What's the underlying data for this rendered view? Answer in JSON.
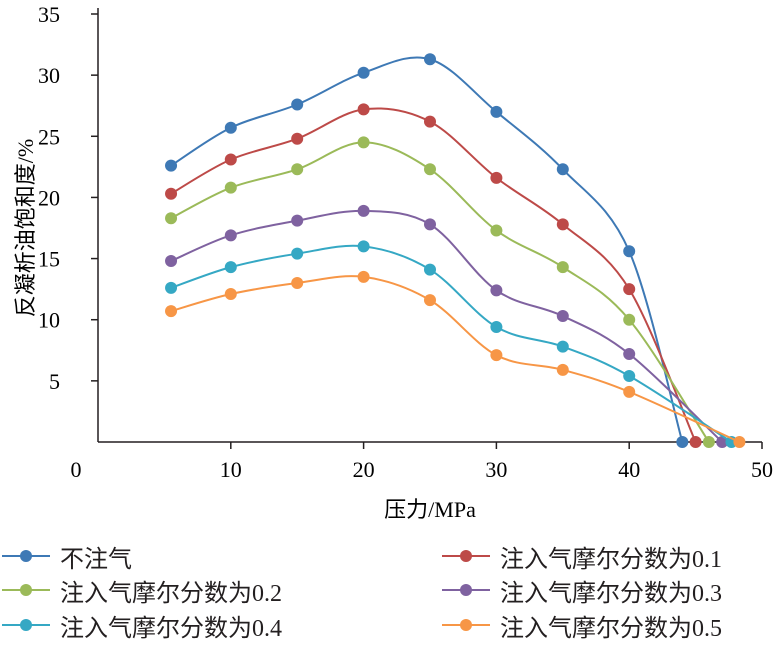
{
  "chart_data": {
    "type": "line",
    "title": "",
    "xlabel": "压力/MPa",
    "ylabel": "反凝析油饱和度/%",
    "xlim": [
      0,
      50
    ],
    "ylim": [
      0,
      35
    ],
    "xticks": [
      0,
      10,
      20,
      30,
      40,
      50
    ],
    "yticks": [
      5,
      10,
      15,
      20,
      25,
      30,
      35
    ],
    "smooth": true,
    "grid": false,
    "legend_position": "bottom",
    "series": [
      {
        "name": "不注气",
        "color": "#3e79b5",
        "x": [
          5.5,
          10,
          15,
          20,
          25,
          30,
          35,
          40,
          44
        ],
        "y": [
          22.6,
          25.7,
          27.6,
          30.2,
          31.3,
          27.0,
          22.3,
          15.6,
          0
        ]
      },
      {
        "name": "注入气摩尔分数为0.1",
        "color": "#bd4a48",
        "x": [
          5.5,
          10,
          15,
          20,
          25,
          30,
          35,
          40,
          45
        ],
        "y": [
          20.3,
          23.1,
          24.8,
          27.2,
          26.2,
          21.6,
          17.8,
          12.5,
          0
        ]
      },
      {
        "name": "注入气摩尔分数为0.2",
        "color": "#9bba59",
        "x": [
          5.5,
          10,
          15,
          20,
          25,
          30,
          35,
          40,
          46
        ],
        "y": [
          18.3,
          20.8,
          22.3,
          24.5,
          22.3,
          17.3,
          14.3,
          10.0,
          0
        ]
      },
      {
        "name": "注入气摩尔分数为0.3",
        "color": "#7f62a0",
        "x": [
          5.5,
          10,
          15,
          20,
          25,
          30,
          35,
          40,
          47
        ],
        "y": [
          14.8,
          16.9,
          18.1,
          18.9,
          17.8,
          12.4,
          10.3,
          7.2,
          0
        ]
      },
      {
        "name": "注入气摩尔分数为0.4",
        "color": "#35a8c4",
        "x": [
          5.5,
          10,
          15,
          20,
          25,
          30,
          35,
          40,
          47.7
        ],
        "y": [
          12.6,
          14.3,
          15.4,
          16.0,
          14.1,
          9.4,
          7.8,
          5.4,
          0
        ]
      },
      {
        "name": "注入气摩尔分数为0.5",
        "color": "#f79646",
        "x": [
          5.5,
          10,
          15,
          20,
          25,
          30,
          35,
          40,
          48.3
        ],
        "y": [
          10.7,
          12.1,
          13.0,
          13.5,
          11.6,
          7.1,
          5.9,
          4.1,
          0
        ]
      }
    ]
  }
}
